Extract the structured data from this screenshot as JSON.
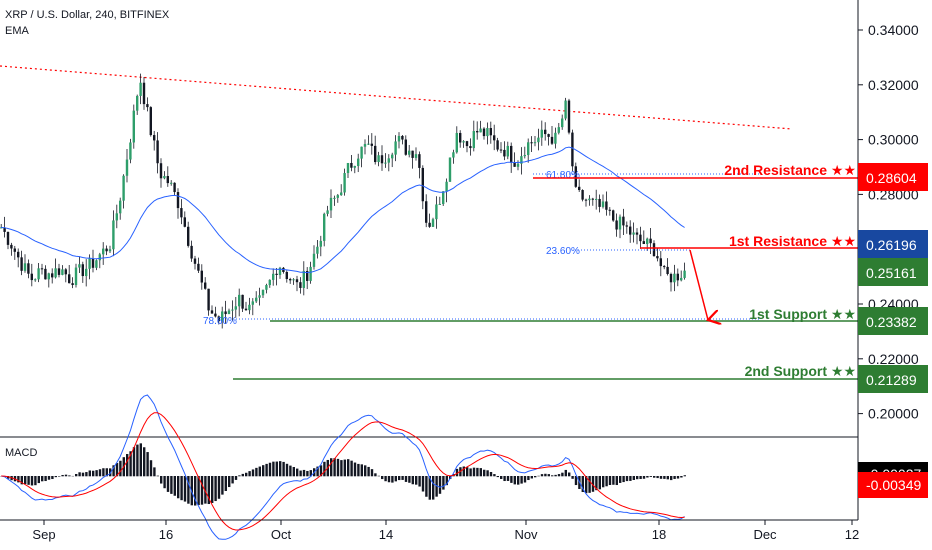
{
  "chart_data": {
    "type": "candlestick",
    "title": "XRP / U.S. Dollar, 240, BITFINEX",
    "indicator": "EMA",
    "price_axis": {
      "ticks": [
        "0.34000",
        "0.32000",
        "0.30000",
        "0.28000",
        "0.26000",
        "0.24000",
        "0.22000",
        "0.20000"
      ],
      "ylim": [
        0.191,
        0.3465
      ]
    },
    "time_axis": {
      "ticks": [
        "Sep",
        "16",
        "Oct",
        "14",
        "Nov",
        "18",
        "Dec",
        "12"
      ]
    },
    "price_path": [
      0.268,
      0.262,
      0.255,
      0.249,
      0.252,
      0.251,
      0.253,
      0.249,
      0.252,
      0.254,
      0.258,
      0.262,
      0.279,
      0.3,
      0.323,
      0.305,
      0.288,
      0.284,
      0.276,
      0.262,
      0.25,
      0.238,
      0.234,
      0.238,
      0.242,
      0.238,
      0.24,
      0.247,
      0.255,
      0.25,
      0.246,
      0.252,
      0.262,
      0.275,
      0.28,
      0.289,
      0.295,
      0.298,
      0.292,
      0.295,
      0.3,
      0.296,
      0.296,
      0.268,
      0.275,
      0.288,
      0.303,
      0.298,
      0.303,
      0.302,
      0.298,
      0.296,
      0.292,
      0.298,
      0.3,
      0.302,
      0.3,
      0.312,
      0.28,
      0.278,
      0.276,
      0.274,
      0.27,
      0.268,
      0.264,
      0.262,
      0.26,
      0.25,
      0.25,
      0.252
    ],
    "levels": [
      {
        "label": "2nd Resistance ★★",
        "value": "0.28604",
        "color": "#ff0000"
      },
      {
        "label": "1st Resistance ★★",
        "value": "0.26196",
        "color": "#ff0000"
      },
      {
        "label": "1st Support ★★",
        "value": "0.23382",
        "color": "#2e7d32"
      },
      {
        "label": "2nd Support ★★",
        "value": "0.21289",
        "color": "#2e7d32"
      }
    ],
    "current_price": {
      "value": "0.25161",
      "color": "#2e7d32"
    },
    "ema_badge": {
      "value": "0.26196",
      "color": "#1848a0"
    },
    "fib_labels": [
      "61.80%",
      "23.60%",
      "78.60%"
    ],
    "macd": {
      "label": "MACD",
      "readouts": [
        "-0.00027",
        "-0.00349"
      ],
      "readout_colors": [
        "#000000",
        "#ff0000"
      ]
    }
  }
}
